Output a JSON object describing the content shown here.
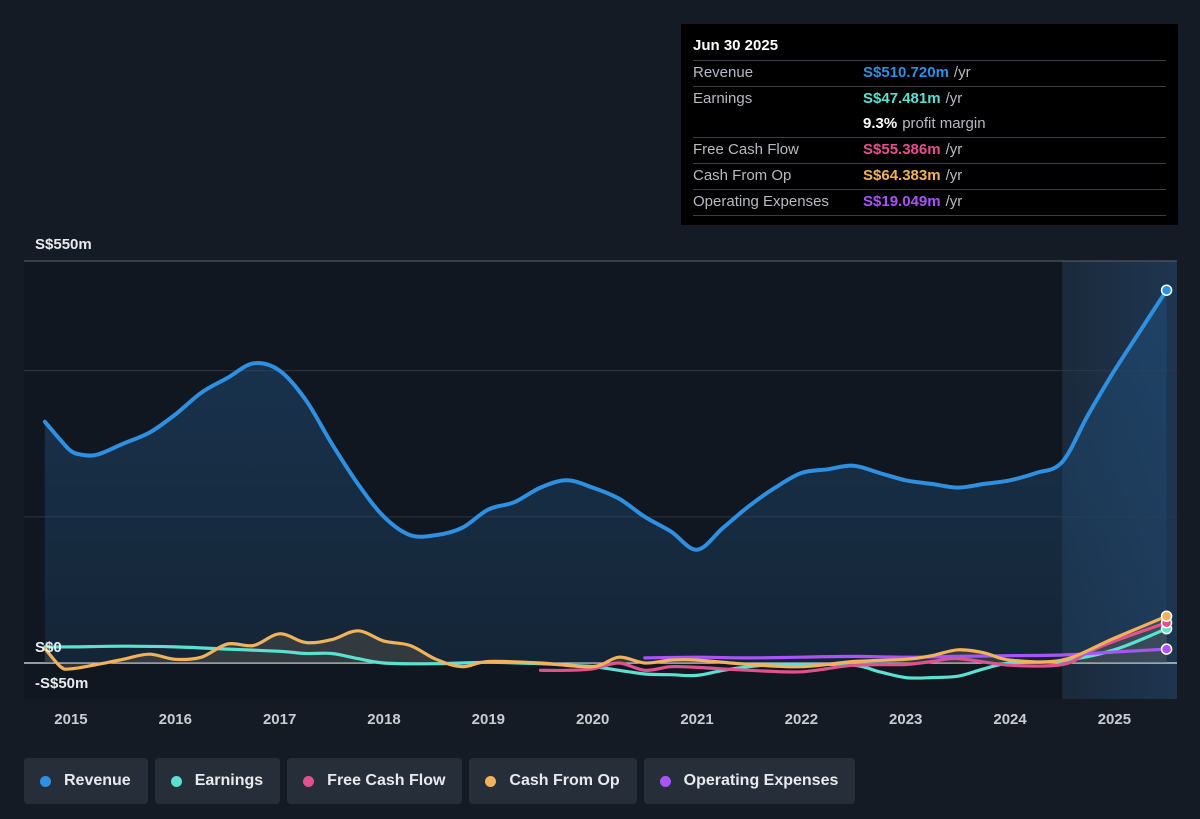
{
  "tooltip": {
    "date": "Jun 30 2025",
    "rows": [
      {
        "label": "Revenue",
        "value": "S$510.720m",
        "unit": "/yr",
        "color": "#2f8fe0"
      },
      {
        "label": "Earnings",
        "value": "S$47.481m",
        "unit": "/yr",
        "color": "#5ce0cf"
      },
      {
        "label": "",
        "value": "9.3%",
        "unit": "profit margin",
        "color": "#ffffff"
      },
      {
        "label": "Free Cash Flow",
        "value": "S$55.386m",
        "unit": "/yr",
        "color": "#e0528f"
      },
      {
        "label": "Cash From Op",
        "value": "S$64.383m",
        "unit": "/yr",
        "color": "#f0b25a"
      },
      {
        "label": "Operating Expenses",
        "value": "S$19.049m",
        "unit": "/yr",
        "color": "#a855f7"
      }
    ]
  },
  "legend": [
    {
      "label": "Revenue",
      "color": "#2f8fe0"
    },
    {
      "label": "Earnings",
      "color": "#5ce0cf"
    },
    {
      "label": "Free Cash Flow",
      "color": "#e0528f"
    },
    {
      "label": "Cash From Op",
      "color": "#f0b25a"
    },
    {
      "label": "Operating Expenses",
      "color": "#a855f7"
    }
  ],
  "chart_data": {
    "type": "line",
    "y_tick_labels": [
      {
        "label": "S$550m",
        "value": 550
      },
      {
        "label": "S$0",
        "value": 0
      },
      {
        "label": "-S$50m",
        "value": -50
      }
    ],
    "ylim": [
      -50,
      550
    ],
    "xlim": [
      2014.55,
      2025.6
    ],
    "x_tick_labels": [
      "2015",
      "2016",
      "2017",
      "2018",
      "2019",
      "2020",
      "2021",
      "2022",
      "2023",
      "2024",
      "2025"
    ],
    "x_tick_values": [
      2015,
      2016,
      2017,
      2018,
      2019,
      2020,
      2021,
      2022,
      2023,
      2024,
      2025
    ],
    "gridlines": [
      550,
      400,
      200,
      0
    ],
    "forecast_start": 2024.5,
    "series": [
      {
        "name": "Revenue",
        "color": "#2f8fe0",
        "fill": true,
        "x": [
          2014.75,
          2014.9,
          2015.0,
          2015.1,
          2015.25,
          2015.5,
          2015.75,
          2016.0,
          2016.25,
          2016.5,
          2016.75,
          2017.0,
          2017.25,
          2017.5,
          2017.75,
          2018.0,
          2018.25,
          2018.5,
          2018.75,
          2019.0,
          2019.25,
          2019.5,
          2019.75,
          2020.0,
          2020.25,
          2020.5,
          2020.75,
          2021.0,
          2021.25,
          2021.5,
          2021.75,
          2022.0,
          2022.25,
          2022.5,
          2022.75,
          2023.0,
          2023.25,
          2023.5,
          2023.75,
          2024.0,
          2024.25,
          2024.5,
          2024.75,
          2025.0,
          2025.25,
          2025.5
        ],
        "y": [
          330,
          305,
          290,
          285,
          285,
          300,
          315,
          340,
          370,
          390,
          410,
          400,
          360,
          300,
          245,
          200,
          175,
          175,
          185,
          210,
          220,
          240,
          250,
          240,
          225,
          200,
          180,
          155,
          185,
          215,
          240,
          260,
          265,
          270,
          260,
          250,
          245,
          240,
          245,
          250,
          260,
          275,
          340,
          400,
          455,
          510
        ]
      },
      {
        "name": "Earnings",
        "color": "#5ce0cf",
        "fill": false,
        "x": [
          2014.75,
          2015.0,
          2015.5,
          2016.0,
          2016.5,
          2017.0,
          2017.25,
          2017.5,
          2017.75,
          2018.0,
          2018.5,
          2019.0,
          2019.5,
          2020.0,
          2020.25,
          2020.5,
          2020.75,
          2021.0,
          2021.25,
          2021.5,
          2021.75,
          2022.0,
          2022.5,
          2022.75,
          2023.0,
          2023.25,
          2023.5,
          2023.75,
          2024.0,
          2024.5,
          2025.0,
          2025.5
        ],
        "y": [
          22,
          22,
          23,
          22,
          19,
          16,
          13,
          13,
          6,
          0,
          -1,
          1,
          -1,
          -5,
          -10,
          -15,
          -16,
          -17,
          -10,
          -5,
          -2,
          -2,
          -3,
          -12,
          -20,
          -20,
          -18,
          -8,
          0,
          3,
          18,
          47
        ]
      },
      {
        "name": "Free Cash Flow",
        "color": "#e0528f",
        "fill": false,
        "x": [
          2019.5,
          2019.75,
          2020.0,
          2020.25,
          2020.5,
          2020.75,
          2021.0,
          2021.5,
          2022.0,
          2022.5,
          2023.0,
          2023.25,
          2023.5,
          2024.0,
          2024.5,
          2024.75,
          2025.0,
          2025.5
        ],
        "y": [
          -10,
          -10,
          -8,
          0,
          -10,
          -5,
          -6,
          -10,
          -12,
          -3,
          -2,
          2,
          6,
          -3,
          -2,
          15,
          30,
          55
        ]
      },
      {
        "name": "Cash From Op",
        "color": "#f0b25a",
        "fill": false,
        "x": [
          2014.75,
          2014.9,
          2015.0,
          2015.25,
          2015.5,
          2015.75,
          2016.0,
          2016.25,
          2016.5,
          2016.75,
          2017.0,
          2017.25,
          2017.5,
          2017.75,
          2018.0,
          2018.25,
          2018.5,
          2018.75,
          2019.0,
          2019.5,
          2020.0,
          2020.25,
          2020.5,
          2020.75,
          2021.0,
          2021.5,
          2022.0,
          2022.5,
          2023.0,
          2023.25,
          2023.5,
          2023.75,
          2024.0,
          2024.5,
          2025.0,
          2025.5
        ],
        "y": [
          20,
          -5,
          -8,
          -2,
          5,
          12,
          5,
          8,
          26,
          24,
          40,
          28,
          32,
          44,
          30,
          24,
          5,
          -5,
          2,
          0,
          -5,
          8,
          0,
          4,
          4,
          -2,
          -5,
          2,
          5,
          10,
          18,
          14,
          4,
          4,
          34,
          64
        ]
      },
      {
        "name": "Operating Expenses",
        "color": "#a855f7",
        "fill": false,
        "x": [
          2020.5,
          2021.0,
          2021.5,
          2022.0,
          2022.5,
          2023.0,
          2023.5,
          2024.0,
          2024.5,
          2025.0,
          2025.5
        ],
        "y": [
          7,
          8,
          7,
          8,
          9,
          8,
          9,
          10,
          11,
          15,
          19
        ]
      }
    ]
  }
}
